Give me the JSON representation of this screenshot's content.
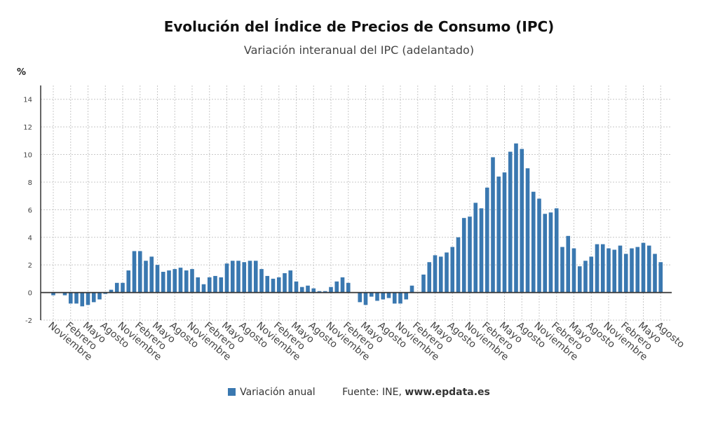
{
  "chart_data": {
    "type": "bar",
    "title": "Evolución del Índice de Precios de Consumo (IPC)",
    "subtitle": "Variación interanual del IPC (adelantado)",
    "ylabel": "%",
    "ylim": [
      -2,
      15
    ],
    "yticks": [
      -2,
      0,
      2,
      4,
      6,
      8,
      10,
      12,
      14
    ],
    "grid": true,
    "legend_position": "bottom",
    "series": [
      {
        "name": "Variación anual",
        "color": "#3a78b0",
        "values": [
          -0.2,
          0.0,
          -0.2,
          -0.8,
          -0.8,
          -1.0,
          -0.9,
          -0.7,
          -0.5,
          -0.1,
          0.2,
          0.7,
          0.7,
          1.6,
          3.0,
          3.0,
          2.3,
          2.6,
          2.0,
          1.5,
          1.6,
          1.7,
          1.8,
          1.6,
          1.7,
          1.1,
          0.6,
          1.1,
          1.2,
          1.1,
          2.1,
          2.3,
          2.3,
          2.2,
          2.3,
          2.3,
          1.7,
          1.2,
          1.0,
          1.1,
          1.4,
          1.6,
          0.8,
          0.4,
          0.5,
          0.3,
          0.1,
          0.1,
          0.4,
          0.8,
          1.1,
          0.7,
          0.0,
          -0.7,
          -0.9,
          -0.3,
          -0.6,
          -0.5,
          -0.4,
          -0.8,
          -0.8,
          -0.5,
          0.5,
          0.0,
          1.3,
          2.2,
          2.7,
          2.6,
          2.9,
          3.3,
          4.0,
          5.4,
          5.5,
          6.5,
          6.1,
          7.6,
          9.8,
          8.4,
          8.7,
          10.2,
          10.8,
          10.4,
          9.0,
          7.3,
          6.8,
          5.7,
          5.8,
          6.1,
          3.3,
          4.1,
          3.2,
          1.9,
          2.3,
          2.6,
          3.5,
          3.5,
          3.2,
          3.1,
          3.4,
          2.8,
          3.2,
          3.3,
          3.6,
          3.4,
          2.8,
          2.2
        ]
      }
    ],
    "x_tick_labels": [
      "Noviembre",
      "Febrero",
      "Mayo",
      "Agosto",
      "Noviembre",
      "Febrero",
      "Mayo",
      "Agosto",
      "Noviembre",
      "Febrero",
      "Mayo",
      "Agosto",
      "Noviembre",
      "Febrero",
      "Mayo",
      "Agosto",
      "Noviembre",
      "Febrero",
      "Mayo",
      "Agosto",
      "Noviembre",
      "Febrero",
      "Mayo",
      "Agosto",
      "Noviembre",
      "Febrero",
      "Mayo",
      "Agosto",
      "Noviembre",
      "Febrero",
      "Mayo",
      "Agosto",
      "Noviembre",
      "Febrero",
      "Mayo",
      "Agosto"
    ],
    "x_tick_first_index": 0,
    "x_tick_step": 3
  },
  "legend": {
    "label": "Variación anual",
    "source_prefix": "Fuente: INE, ",
    "source_site": "www.epdata.es"
  }
}
